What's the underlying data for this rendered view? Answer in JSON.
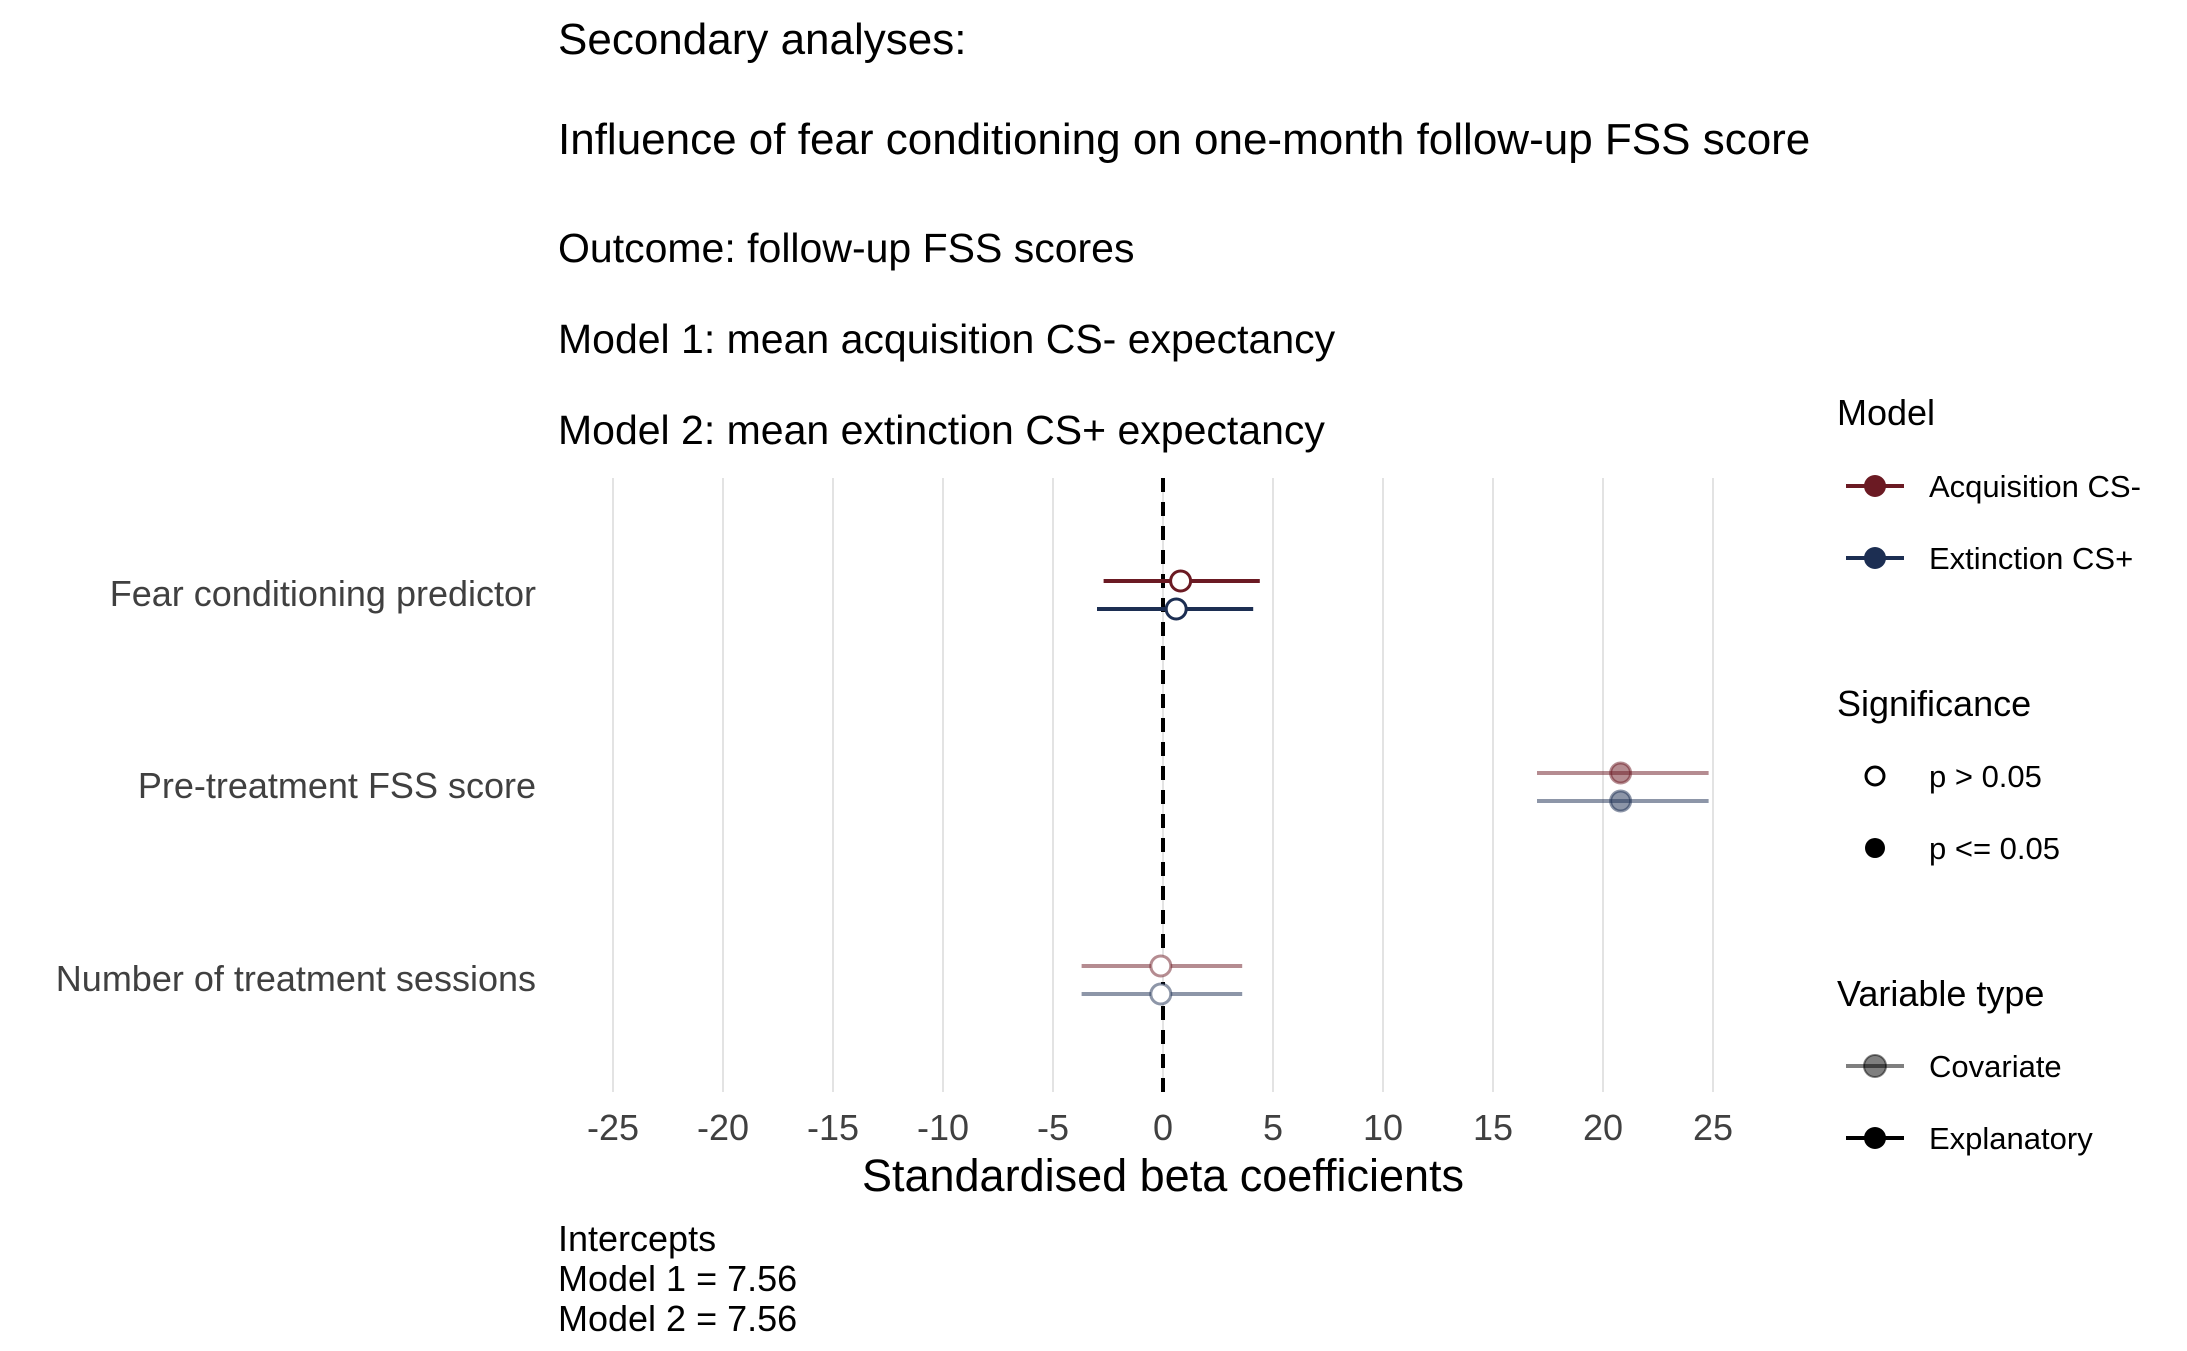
{
  "chart_data": {
    "type": "forest",
    "title": "Secondary analyses:",
    "subtitle": "Influence of fear conditioning on one-month follow-up FSS score",
    "subtitle_lines": [
      "Outcome: follow-up FSS scores",
      "Model 1: mean acquisition CS- expectancy",
      "Model 2: mean extinction CS+ expectancy"
    ],
    "xlabel": "Standardised beta coefficients",
    "xlim": [
      -27.5,
      27.5
    ],
    "x_ticks": [
      "-25",
      "-20",
      "-15",
      "-10",
      "-5",
      "0",
      "5",
      "10",
      "15",
      "20",
      "25"
    ],
    "x_tick_values": [
      -25,
      -20,
      -15,
      -10,
      -5,
      0,
      5,
      10,
      15,
      20,
      25
    ],
    "reference_line": 0,
    "grid": "vertical",
    "categories": [
      "Fear conditioning predictor",
      "Pre-treatment FSS score",
      "Number of treatment sessions"
    ],
    "series": [
      {
        "name": "Acquisition CS-",
        "color": "#6b1a23",
        "estimates": [
          0.8,
          20.8,
          -0.1
        ],
        "ci_low": [
          -2.7,
          17.0,
          -3.7
        ],
        "ci_high": [
          4.4,
          24.8,
          3.6
        ],
        "significant": [
          false,
          true,
          false
        ],
        "variable_type": [
          "Explanatory",
          "Covariate",
          "Covariate"
        ]
      },
      {
        "name": "Extinction CS+",
        "color": "#1c2e52",
        "estimates": [
          0.6,
          20.8,
          -0.1
        ],
        "ci_low": [
          -3.0,
          17.0,
          -3.7
        ],
        "ci_high": [
          4.1,
          24.8,
          3.6
        ],
        "significant": [
          false,
          true,
          false
        ],
        "variable_type": [
          "Explanatory",
          "Covariate",
          "Covariate"
        ]
      }
    ],
    "legend": {
      "position": "right",
      "model": {
        "title": "Model",
        "items": [
          "Acquisition CS-",
          "Extinction CS+"
        ]
      },
      "significance": {
        "title": "Significance",
        "items": [
          "p > 0.05",
          "p <= 0.05"
        ]
      },
      "variable_type": {
        "title": "Variable type",
        "items": [
          "Covariate",
          "Explanatory"
        ]
      }
    },
    "caption_lines": [
      "Intercepts",
      "Model 1 = 7.56",
      "Model 2 = 7.56"
    ]
  }
}
